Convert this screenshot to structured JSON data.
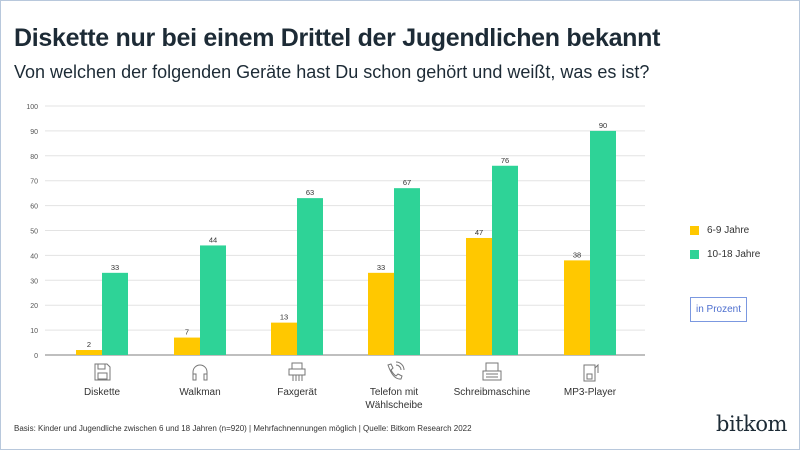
{
  "title": "Diskette nur bei einem Drittel der Jugendlichen bekannt",
  "subtitle": "Von welchen der folgenden Geräte hast Du schon gehört und weißt, was es ist?",
  "legend": {
    "unit_label": "in Prozent"
  },
  "footer": "Basis: Kinder und Jugendliche zwischen 6 und 18 Jahren (n=920) | Mehrfachnennungen möglich | Quelle: Bitkom Research 2022",
  "logo": "bitkom",
  "chart_data": {
    "type": "bar",
    "categories": [
      "Diskette",
      "Walkman",
      "Faxgerät",
      "Telefon mit Wählscheibe",
      "Schreibmaschine",
      "MP3-Player"
    ],
    "category_lines": [
      [
        "Diskette"
      ],
      [
        "Walkman"
      ],
      [
        "Faxgerät"
      ],
      [
        "Telefon mit",
        "Wählscheibe"
      ],
      [
        "Schreibmaschine"
      ],
      [
        "MP3-Player"
      ]
    ],
    "category_icons": [
      "floppy-disk-icon",
      "headphones-icon",
      "fax-machine-icon",
      "telephone-icon",
      "typewriter-icon",
      "mp3-player-icon"
    ],
    "series": [
      {
        "name": "6-9 Jahre",
        "color": "#ffc800",
        "values": [
          2,
          7,
          13,
          33,
          47,
          38
        ]
      },
      {
        "name": "10-18 Jahre",
        "color": "#2ed397",
        "values": [
          33,
          44,
          63,
          67,
          76,
          90
        ]
      }
    ],
    "ylim": [
      0,
      100
    ],
    "yticks": [
      0,
      10,
      20,
      30,
      40,
      50,
      60,
      70,
      80,
      90,
      100
    ],
    "grid": true,
    "legend_position": "right"
  }
}
